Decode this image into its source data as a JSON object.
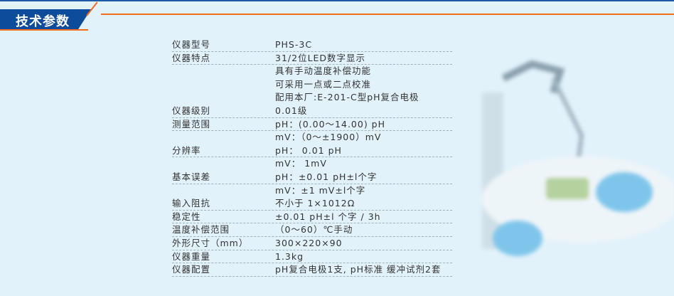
{
  "header": {
    "title": "技术参数",
    "accent": "#f26a1b",
    "brand": "#0d4c9a"
  },
  "specs": [
    {
      "label": "仪器型号",
      "values": [
        "PHS-3C"
      ]
    },
    {
      "label": "仪器特点",
      "values": [
        "31/2位LED数字显示",
        "具有手动温度补偿功能",
        "可采用一点或二点校准",
        "配用本厂:E-201-C型pH复合电极"
      ]
    },
    {
      "label": "仪器级别",
      "values": [
        "0.01级"
      ]
    },
    {
      "label": "测量范围",
      "values": [
        "pH：(0.00～14.00) pH",
        "mV：（0～±1900）mV"
      ]
    },
    {
      "label": "分辨率",
      "values": [
        "pH： 0.01 pH",
        "mV： 1mV"
      ]
    },
    {
      "label": "基本误差",
      "values": [
        "pH：±0.01 pH±l个字",
        "mV：±1 mV±l个字"
      ]
    },
    {
      "label": "输入阻抗",
      "values": [
        "不小于 1×1012Ω"
      ]
    },
    {
      "label": "稳定性",
      "values": [
        "±0.01 pH±l 个字 / 3h"
      ]
    },
    {
      "label": "温度补偿范围",
      "values": [
        "（0～60）℃手动"
      ]
    },
    {
      "label": "外形尺寸（mm）",
      "values": [
        "300×220×90"
      ]
    },
    {
      "label": "仪器重量",
      "values": [
        "1.3kg"
      ]
    },
    {
      "label": "仪器配置",
      "values": [
        "pH复合电极1支, pH标准 缓冲试剂2套"
      ]
    }
  ]
}
